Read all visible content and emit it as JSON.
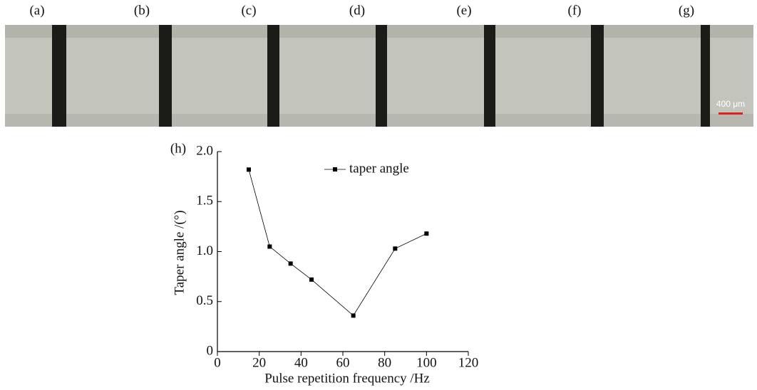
{
  "figure": {
    "panel_labels": [
      "(a)",
      "(b)",
      "(c)",
      "(d)",
      "(e)",
      "(f)",
      "(g)"
    ],
    "scale_bar": "400 μm"
  },
  "chart_data": {
    "type": "line",
    "panel_label": "(h)",
    "x_label": "Pulse repetition frequency /Hz",
    "y_label": "Taper angle /(°)",
    "x": [
      15,
      25,
      35,
      45,
      65,
      85,
      100
    ],
    "series": [
      {
        "name": "taper angle",
        "color": "#000000",
        "values": [
          1.82,
          1.05,
          0.88,
          0.72,
          0.36,
          1.03,
          1.18
        ]
      }
    ],
    "xlim": [
      0,
      120
    ],
    "xticks": [
      0,
      20,
      40,
      60,
      80,
      100,
      120
    ],
    "ylim": [
      0,
      2
    ],
    "yticks": [
      0,
      0.5,
      {
        "value": 1,
        "label": "1.0"
      },
      1.5,
      {
        "value": 2,
        "label": "2.0"
      }
    ],
    "legend": "top-right",
    "grid": false
  }
}
